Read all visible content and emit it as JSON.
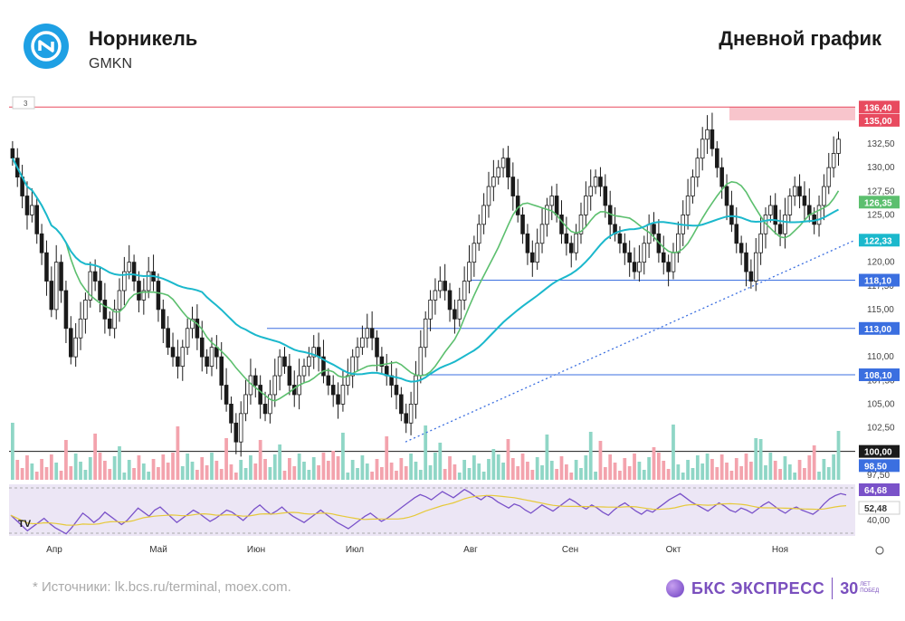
{
  "header": {
    "title": "Норникель",
    "ticker": "GMKN",
    "chart_kind": "Дневной график",
    "interval_badge": "3"
  },
  "footer": {
    "source": "*  Источники: lk.bcs.ru/terminal, moex.com.",
    "brand": "БКС ЭКСПРЕСС",
    "brand_years": "30",
    "brand_sub1": "ЛЕТ",
    "brand_sub2": "ПОБЕД"
  },
  "colors": {
    "up": "#1a1a1a",
    "down": "#1a1a1a",
    "ma_fast": "#5cbf6e",
    "ma_slow": "#1bb8cc",
    "level": "#3b6fe0",
    "resistance": "#e84a5f",
    "rsi": "#7a52c9",
    "rsi_signal": "#e6c93a",
    "vol_up": "#8fd6c6",
    "vol_down": "#f3a3ad"
  },
  "chart_data": {
    "type": "line",
    "x_ticks": [
      "Апр",
      "Май",
      "Июн",
      "Июл",
      "Авг",
      "Сен",
      "Окт",
      "Ноя"
    ],
    "y_ticks": [
      "132,50",
      "130,00",
      "127,50",
      "125,00",
      "120,00",
      "117,50",
      "115,00",
      "110,00",
      "107,50",
      "105,00",
      "102,50",
      "97,50"
    ],
    "ylim": [
      97,
      137
    ],
    "price_labels": [
      {
        "value": 136.4,
        "text": "136,40",
        "color": "#e84a5f"
      },
      {
        "value": 135.0,
        "text": "135,00",
        "color": "#e84a5f"
      },
      {
        "value": 126.35,
        "text": "126,35",
        "color": "#5cbf6e"
      },
      {
        "value": 122.33,
        "text": "122,33",
        "color": "#1bb8cc"
      },
      {
        "value": 118.1,
        "text": "118,10",
        "color": "#3b6fe0"
      },
      {
        "value": 113.0,
        "text": "113,00",
        "color": "#3b6fe0"
      },
      {
        "value": 108.1,
        "text": "108,10",
        "color": "#3b6fe0"
      },
      {
        "value": 100.0,
        "text": "100,00",
        "color": "#1a1a1a"
      },
      {
        "value": 98.5,
        "text": "98,50",
        "color": "#3b6fe0"
      }
    ],
    "levels": [
      136.4,
      118.1,
      113.0,
      108.1,
      100.0
    ],
    "rsi": {
      "ticks": [
        "40,00"
      ],
      "labels": [
        {
          "text": "64,68",
          "color": "#7a52c9"
        },
        {
          "text": "52,48",
          "color": "#c9a800"
        }
      ],
      "series": [
        45,
        40,
        35,
        30,
        34,
        38,
        42,
        37,
        33,
        30,
        27,
        33,
        40,
        47,
        43,
        38,
        42,
        48,
        44,
        40,
        36,
        40,
        46,
        52,
        48,
        44,
        50,
        53,
        48,
        43,
        38,
        42,
        46,
        50,
        47,
        43,
        39,
        42,
        46,
        50,
        48,
        44,
        40,
        45,
        51,
        55,
        50,
        46,
        49,
        53,
        48,
        44,
        41,
        38,
        42,
        46,
        50,
        46,
        42,
        38,
        35,
        32,
        36,
        40,
        44,
        47,
        43,
        39,
        42,
        46,
        50,
        54,
        58,
        62,
        65,
        63,
        60,
        64,
        68,
        65,
        62,
        66,
        70,
        67,
        63,
        60,
        64,
        62,
        58,
        55,
        52,
        56,
        54,
        50,
        47,
        51,
        55,
        52,
        49,
        53,
        57,
        61,
        58,
        54,
        51,
        55,
        52,
        48,
        45,
        50,
        54,
        57,
        53,
        49,
        46,
        50,
        48,
        52,
        56,
        60,
        63,
        66,
        62,
        58,
        55,
        52,
        49,
        53,
        57,
        54,
        50,
        48,
        52,
        50,
        47,
        51,
        55,
        58,
        54,
        50,
        47,
        51,
        53,
        50,
        48,
        46,
        50,
        56,
        61,
        64,
        66,
        64.68
      ]
    },
    "series": [
      {
        "name": "",
        "type": "candles",
        "close": [
          131,
          129,
          127,
          125,
          126,
          123,
          121,
          118,
          115,
          120,
          117,
          113,
          110,
          112,
          114,
          116,
          119,
          118,
          116,
          114,
          113,
          115,
          117,
          119,
          120,
          118,
          116,
          117,
          119,
          118,
          115,
          113,
          111,
          110,
          109,
          111,
          113,
          114,
          112,
          110,
          109,
          111,
          110,
          107,
          105,
          103,
          101,
          104,
          106,
          108,
          107,
          105,
          104,
          106,
          108,
          110,
          109,
          107,
          106,
          108,
          109,
          110,
          111,
          110,
          108,
          107,
          106,
          105,
          107,
          108,
          110,
          111,
          112,
          113,
          112,
          110,
          109,
          108,
          107,
          106,
          104,
          103,
          105,
          108,
          111,
          114,
          116,
          117,
          118,
          117,
          115,
          114,
          116,
          118,
          120,
          122,
          124,
          126,
          128,
          129,
          130,
          131,
          129,
          127,
          125,
          123,
          121,
          120,
          122,
          124,
          126,
          127,
          125,
          123,
          122,
          121,
          123,
          125,
          127,
          128,
          129,
          128,
          126,
          124,
          123,
          122,
          121,
          120,
          119,
          120,
          122,
          124,
          123,
          121,
          120,
          119,
          121,
          123,
          125,
          127,
          129,
          131,
          133,
          134,
          132,
          130,
          128,
          126,
          124,
          122,
          121,
          119,
          118,
          121,
          123,
          125,
          126,
          124,
          123,
          125,
          127,
          128,
          127,
          126,
          125,
          124,
          126,
          128,
          130,
          131.5,
          133
        ]
      }
    ]
  }
}
